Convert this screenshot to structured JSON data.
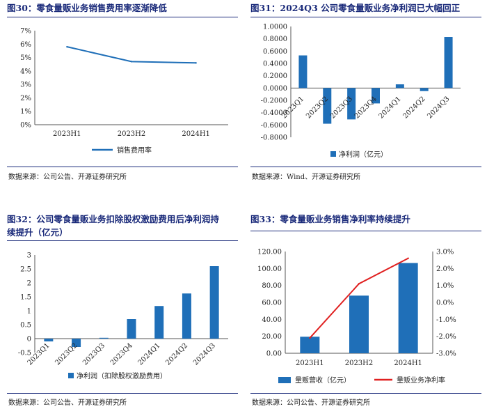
{
  "colors": {
    "bar": "#1f6fb8",
    "line_blue": "#1f6fb8",
    "line_red": "#e02020",
    "title": "#1a2a7a"
  },
  "chart_data": [
    {
      "id": "fig30",
      "type": "line",
      "title": "图30：零食量贩业务销售费用率逐渐降低",
      "categories": [
        "2023H1",
        "2023H2",
        "2024H1"
      ],
      "series": [
        {
          "name": "销售费用率",
          "values": [
            5.8,
            4.7,
            4.6
          ]
        }
      ],
      "ylim": [
        0,
        7
      ],
      "yticks": [
        "0%",
        "1%",
        "2%",
        "3%",
        "4%",
        "5%",
        "6%",
        "7%"
      ],
      "legend": "bottom",
      "source": "数据来源：公司公告、开源证券研究所"
    },
    {
      "id": "fig31",
      "type": "bar",
      "title": "图31：2024Q3 公司零食量贩业务净利润已大幅回正",
      "categories": [
        "2023Q1",
        "2023Q2",
        "2023Q3",
        "2023Q4",
        "2024Q1",
        "2024Q2",
        "2024Q3"
      ],
      "series": [
        {
          "name": "净利润（亿元）",
          "values": [
            0.53,
            -0.58,
            -0.51,
            -0.25,
            0.06,
            -0.05,
            0.83
          ]
        }
      ],
      "ylim": [
        -0.8,
        1.0
      ],
      "yticks": [
        "-0.8000",
        "-0.6000",
        "-0.4000",
        "-0.2000",
        "0.0000",
        "0.2000",
        "0.4000",
        "0.6000",
        "0.8000",
        "1.0000"
      ],
      "legend": "bottom",
      "source": "数据来源：Wind、开源证券研究所"
    },
    {
      "id": "fig32",
      "type": "bar",
      "title_line1": "图32：公司零食量贩业务扣除股权激励费用后净利润持",
      "title_line2": "续提升（亿元）",
      "categories": [
        "2023Q1",
        "2023Q2",
        "2023Q3",
        "2023Q4",
        "2024Q1",
        "2024Q2",
        "2024Q3"
      ],
      "series": [
        {
          "name": "净利润（扣除股权激励费用）",
          "values": [
            -0.1,
            -0.3,
            0.03,
            0.7,
            1.17,
            1.62,
            2.6
          ]
        }
      ],
      "ylim": [
        -0.5,
        3.0
      ],
      "yticks": [
        "-0.5",
        "0",
        "0.5",
        "1",
        "1.5",
        "2",
        "2.5",
        "3"
      ],
      "legend": "bottom",
      "source": "数据来源：公司公告、开源证券研究所"
    },
    {
      "id": "fig33",
      "type": "bar",
      "title": "图33：零食量贩业务销售净利率持续提升",
      "categories": [
        "2023H1",
        "2023H2",
        "2024H1"
      ],
      "series": [
        {
          "name": "量贩营收（亿元）",
          "kind": "bar",
          "axis": "left",
          "values": [
            19.5,
            68.0,
            106.5
          ]
        },
        {
          "name": "量贩业务净利率",
          "kind": "line",
          "axis": "right",
          "values": [
            -2.1,
            1.1,
            2.6
          ]
        }
      ],
      "ylim": [
        0,
        120
      ],
      "y2lim": [
        -3.0,
        3.0
      ],
      "yticks": [
        "0.00",
        "20.00",
        "40.00",
        "60.00",
        "80.00",
        "100.00",
        "120.00"
      ],
      "y2ticks": [
        "-3.0%",
        "-2.0%",
        "-1.0%",
        "0.0%",
        "1.0%",
        "2.0%",
        "3.0%"
      ],
      "legend": "bottom",
      "source": "数据来源：公司公告、开源证券研究所"
    }
  ]
}
